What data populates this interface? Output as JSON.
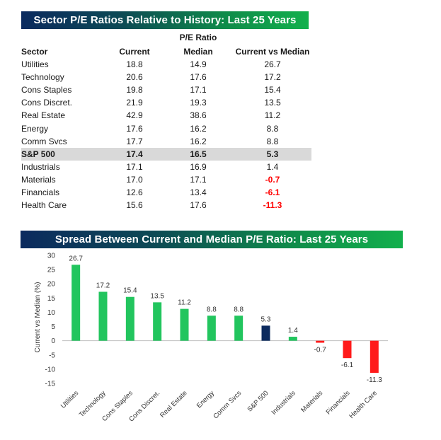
{
  "table": {
    "title": "Sector P/E Ratios Relative to History: Last 25 Years",
    "group_header": "P/E Ratio",
    "columns": [
      "Sector",
      "Current",
      "Median",
      "Current vs Median"
    ],
    "rows": [
      {
        "sector": "Utilities",
        "current": "18.8",
        "median": "14.9",
        "vs": "26.7"
      },
      {
        "sector": "Technology",
        "current": "20.6",
        "median": "17.6",
        "vs": "17.2"
      },
      {
        "sector": "Cons Staples",
        "current": "19.8",
        "median": "17.1",
        "vs": "15.4"
      },
      {
        "sector": "Cons Discret.",
        "current": "21.9",
        "median": "19.3",
        "vs": "13.5"
      },
      {
        "sector": "Real Estate",
        "current": "42.9",
        "median": "38.6",
        "vs": "11.2"
      },
      {
        "sector": "Energy",
        "current": "17.6",
        "median": "16.2",
        "vs": "8.8"
      },
      {
        "sector": "Comm Svcs",
        "current": "17.7",
        "median": "16.2",
        "vs": "8.8"
      },
      {
        "sector": "S&P 500",
        "current": "17.4",
        "median": "16.5",
        "vs": "5.3"
      },
      {
        "sector": "Industrials",
        "current": "17.1",
        "median": "16.9",
        "vs": "1.4"
      },
      {
        "sector": "Materials",
        "current": "17.0",
        "median": "17.1",
        "vs": "-0.7"
      },
      {
        "sector": "Financials",
        "current": "12.6",
        "median": "13.4",
        "vs": "-6.1"
      },
      {
        "sector": "Health Care",
        "current": "15.6",
        "median": "17.6",
        "vs": "-11.3"
      }
    ],
    "highlight_sector": "S&P 500"
  },
  "chart_data": {
    "type": "bar",
    "title": "Spread Between Current and Median P/E Ratio: Last 25 Years",
    "ylabel": "Current vs Median (%)",
    "xlabel": "",
    "ylim": [
      -15,
      30
    ],
    "yticks": [
      30,
      25,
      20,
      15,
      10,
      5,
      0,
      -5,
      -10,
      -15
    ],
    "categories": [
      "Utilities",
      "Technology",
      "Cons Staples",
      "Cons Discret.",
      "Real Estate",
      "Energy",
      "Comm Svcs",
      "S&P 500",
      "Industrials",
      "Materials",
      "Financials",
      "Health Care"
    ],
    "values": [
      26.7,
      17.2,
      15.4,
      13.5,
      11.2,
      8.8,
      8.8,
      5.3,
      1.4,
      -0.7,
      -6.1,
      -11.3
    ],
    "data_labels": [
      "26.7",
      "17.2",
      "15.4",
      "13.5",
      "11.2",
      "8.8",
      "8.8",
      "5.3",
      "1.4",
      "-0.7",
      "-6.1",
      "-11.3"
    ],
    "grid": false,
    "legend": "none",
    "colors": {
      "positive": "#22c55e",
      "negative": "#ff1a1a",
      "benchmark": "#0b2a5e"
    }
  }
}
